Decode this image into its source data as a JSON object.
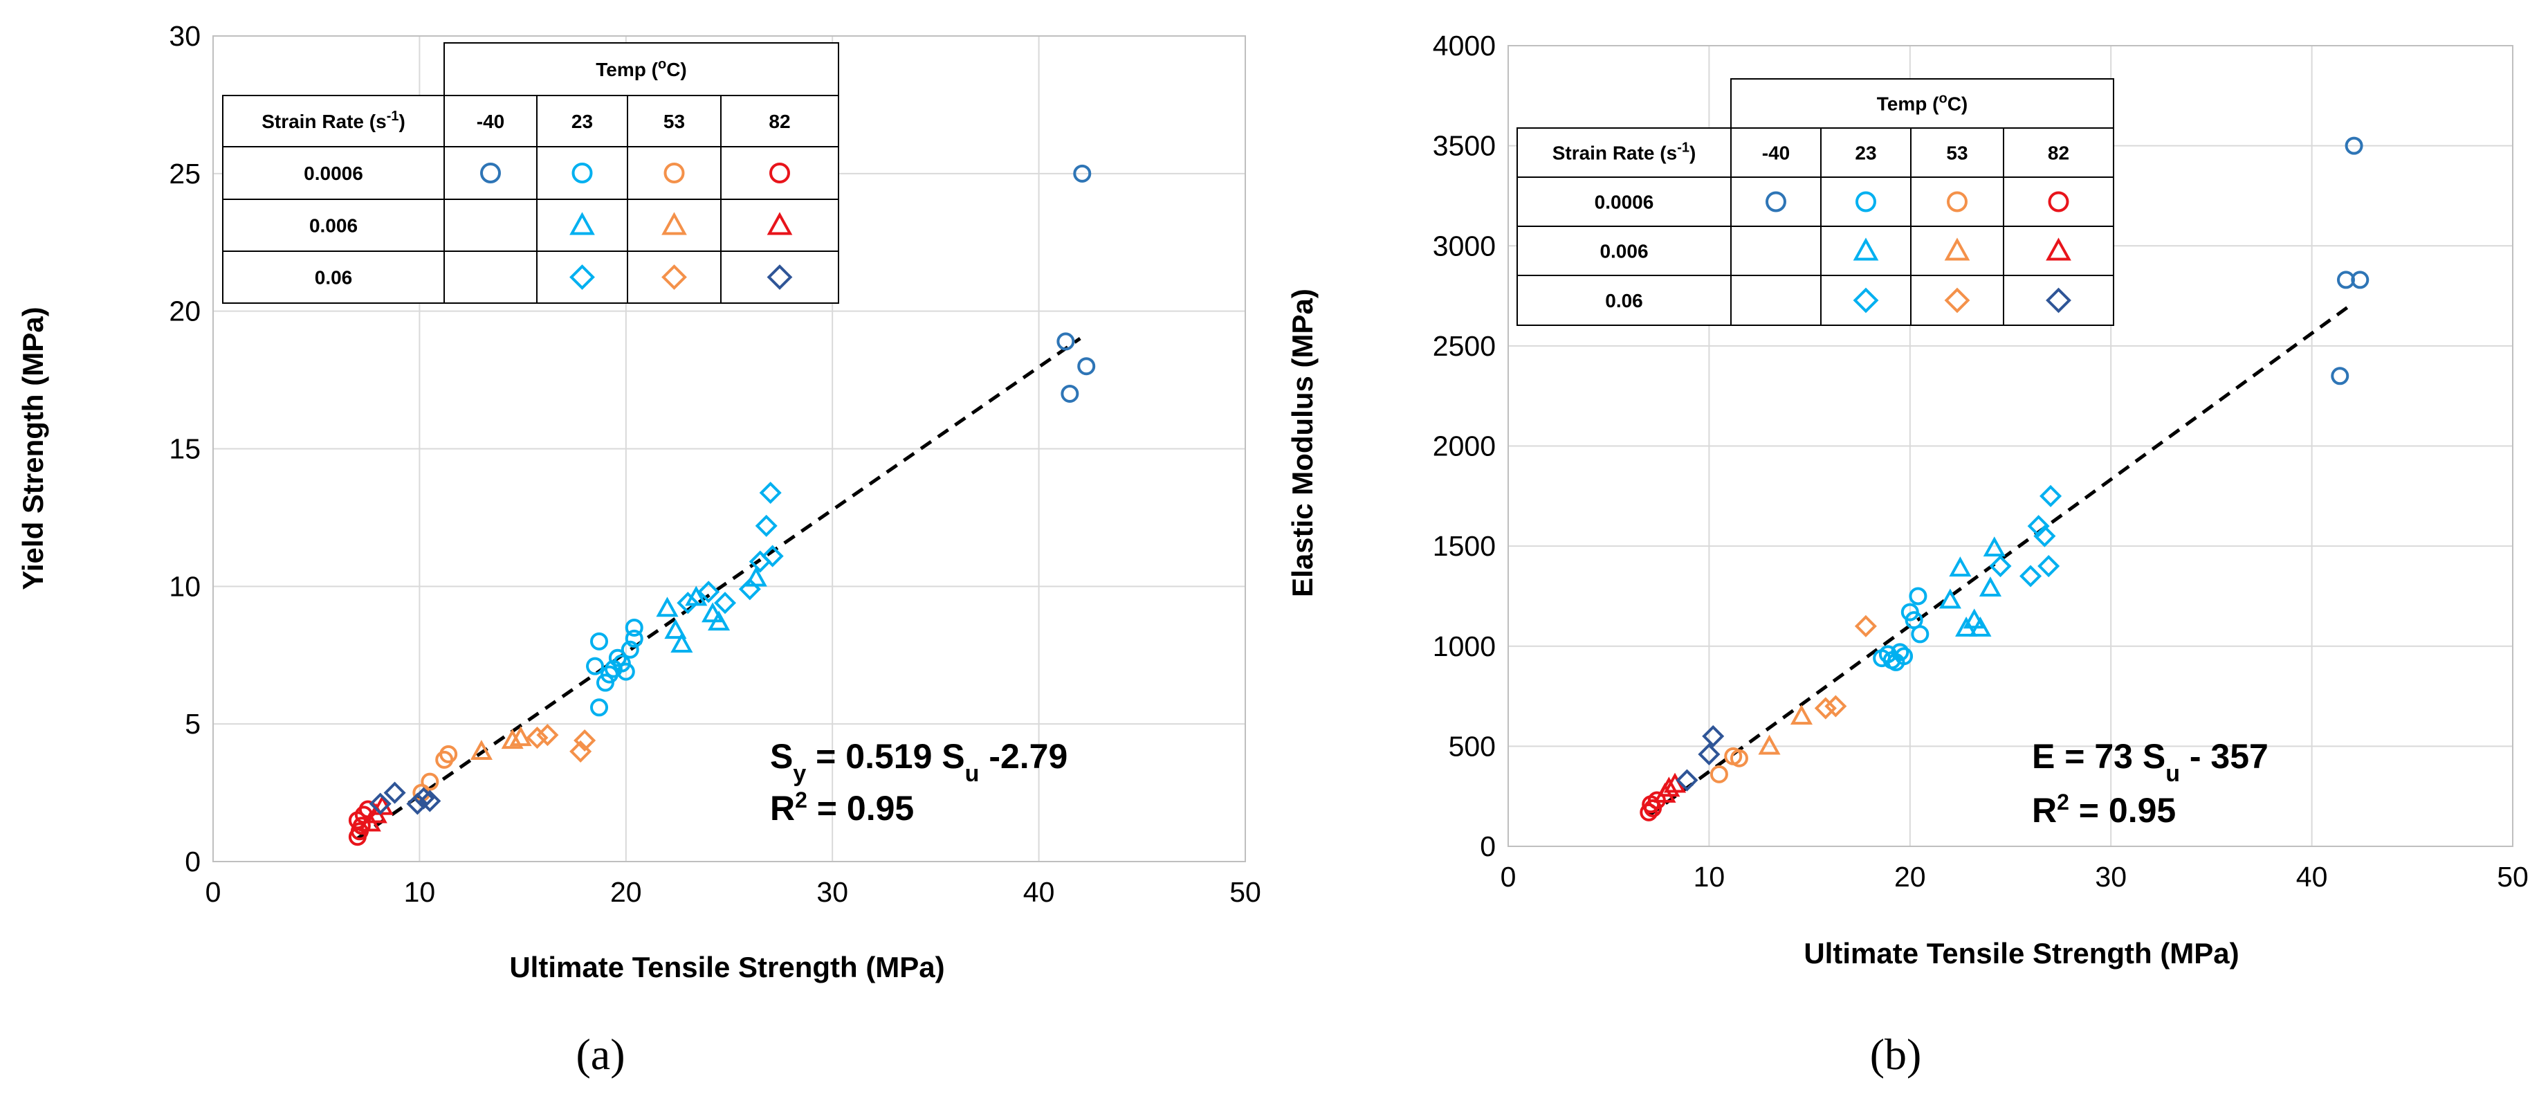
{
  "colors": {
    "m40": "#2E75B6",
    "t23": "#00B0F0",
    "t53": "#F4914A",
    "t82": "#E8141B",
    "t82_diamond": "#2F5597"
  },
  "legend": {
    "temp_label": "Temp (",
    "temp_sup": "o",
    "temp_unit": "C)",
    "rate_label": "Strain Rate (s",
    "rate_sup": "-1",
    "rate_close": ")",
    "temps": [
      "-40",
      "23",
      "53",
      "82"
    ],
    "rates": [
      "0.0006",
      "0.006",
      "0.06"
    ]
  },
  "charts": [
    {
      "panel_label": "(a)",
      "xlabel": "Ultimate Tensile Strength (MPa)",
      "ylabel": "Yield Strength (MPa)",
      "equation": {
        "p1": "S",
        "p1_sub": "y",
        "p2": " = 0.519 S",
        "p2_sub": "u",
        "p3": " -2.79"
      },
      "r2": {
        "p1": "R",
        "sup": "2",
        "p2": " = 0.95"
      }
    },
    {
      "panel_label": "(b)",
      "xlabel": "Ultimate Tensile Strength (MPa)",
      "ylabel": "Elastic Modulus (MPa)",
      "equation": {
        "p1": "E = 73 S",
        "p1_sub": "u",
        "p2": " - 357",
        "p2_sub": "",
        "p3": ""
      },
      "r2": {
        "p1": "R",
        "sup": "2",
        "p2": " = 0.95"
      }
    }
  ],
  "chart_data": [
    {
      "type": "scatter",
      "xlabel": "Ultimate Tensile Strength (MPa)",
      "ylabel": "Yield Strength (MPa)",
      "xlim": [
        0,
        50
      ],
      "ylim": [
        0,
        30
      ],
      "xticks": [
        0,
        10,
        20,
        30,
        40,
        50
      ],
      "yticks": [
        0,
        5,
        10,
        15,
        20,
        25,
        30
      ],
      "grid": true,
      "trendline": {
        "slope": 0.519,
        "intercept": -2.79,
        "x_range": [
          7,
          42
        ],
        "style": "dashed"
      },
      "series": [
        {
          "temp": "-40",
          "rate": "0.0006",
          "marker": "circle",
          "color": "#2E75B6",
          "x": [
            41.3,
            42.1,
            41.5,
            42.3
          ],
          "y": [
            18.9,
            25.0,
            17.0,
            18.0
          ]
        },
        {
          "temp": "23",
          "rate": "0.0006",
          "marker": "circle",
          "color": "#00B0F0",
          "x": [
            18.5,
            18.7,
            19.0,
            19.2,
            19.4,
            19.6,
            19.8,
            20.0,
            20.2,
            20.4,
            20.4,
            18.7
          ],
          "y": [
            7.1,
            8.0,
            6.5,
            6.8,
            7.0,
            7.4,
            7.2,
            6.9,
            7.7,
            8.1,
            8.5,
            5.6
          ]
        },
        {
          "temp": "23",
          "rate": "0.006",
          "marker": "triangle",
          "color": "#00B0F0",
          "x": [
            22.0,
            22.4,
            22.7,
            23.4,
            24.2,
            24.5,
            26.3
          ],
          "y": [
            9.2,
            8.4,
            7.9,
            9.6,
            9.0,
            8.7,
            10.3
          ]
        },
        {
          "temp": "23",
          "rate": "0.06",
          "marker": "diamond",
          "color": "#00B0F0",
          "x": [
            23.0,
            24.0,
            24.8,
            26.0,
            26.5,
            26.8,
            27.0,
            27.1
          ],
          "y": [
            9.4,
            9.8,
            9.4,
            9.9,
            10.9,
            12.2,
            13.4,
            11.1
          ]
        },
        {
          "temp": "53",
          "rate": "0.0006",
          "marker": "circle",
          "color": "#F4914A",
          "x": [
            10.5,
            11.2,
            11.4,
            10.1
          ],
          "y": [
            2.9,
            3.7,
            3.9,
            2.5
          ]
        },
        {
          "temp": "53",
          "rate": "0.006",
          "marker": "triangle",
          "color": "#F4914A",
          "x": [
            13.0,
            14.5,
            14.9
          ],
          "y": [
            4.0,
            4.4,
            4.5
          ]
        },
        {
          "temp": "53",
          "rate": "0.06",
          "marker": "diamond",
          "color": "#F4914A",
          "x": [
            15.7,
            16.2,
            17.8,
            18.0
          ],
          "y": [
            4.5,
            4.6,
            4.0,
            4.4
          ]
        },
        {
          "temp": "82",
          "rate": "0.0006",
          "marker": "circle",
          "color": "#E8141B",
          "x": [
            7.0,
            7.1,
            7.2,
            7.0,
            7.3,
            7.5
          ],
          "y": [
            0.9,
            1.1,
            1.3,
            1.5,
            1.7,
            1.9
          ]
        },
        {
          "temp": "82",
          "rate": "0.006",
          "marker": "triangle",
          "color": "#E8141B",
          "x": [
            7.6,
            7.9,
            8.2
          ],
          "y": [
            1.4,
            1.7,
            2.0
          ]
        },
        {
          "temp": "82",
          "rate": "0.06",
          "marker": "diamond",
          "color": "#E8141B",
          "x": [
            8.1,
            8.8,
            9.9,
            10.2,
            10.5
          ],
          "y": [
            2.1,
            2.5,
            2.1,
            2.3,
            2.2
          ]
        }
      ]
    },
    {
      "type": "scatter",
      "xlabel": "Ultimate Tensile Strength (MPa)",
      "ylabel": "Elastic Modulus (MPa)",
      "xlim": [
        0,
        50
      ],
      "ylim": [
        0,
        4000
      ],
      "xticks": [
        0,
        10,
        20,
        30,
        40,
        50
      ],
      "yticks": [
        0,
        500,
        1000,
        1500,
        2000,
        2500,
        3000,
        3500,
        4000
      ],
      "grid": true,
      "trendline": {
        "slope": 73,
        "intercept": -357,
        "x_range": [
          7,
          42
        ],
        "style": "dashed"
      },
      "series": [
        {
          "temp": "-40",
          "rate": "0.0006",
          "marker": "circle",
          "color": "#2E75B6",
          "x": [
            41.4,
            41.7,
            42.1,
            42.4
          ],
          "y": [
            2350,
            2830,
            3500,
            2830
          ]
        },
        {
          "temp": "23",
          "rate": "0.0006",
          "marker": "circle",
          "color": "#00B0F0",
          "x": [
            18.6,
            18.9,
            19.1,
            19.3,
            19.5,
            19.7,
            20.0,
            20.2,
            20.4,
            20.5
          ],
          "y": [
            940,
            960,
            930,
            920,
            970,
            950,
            1170,
            1130,
            1250,
            1060
          ]
        },
        {
          "temp": "23",
          "rate": "0.006",
          "marker": "triangle",
          "color": "#00B0F0",
          "x": [
            22.0,
            22.5,
            22.8,
            23.2,
            23.5,
            24.0,
            24.2
          ],
          "y": [
            1230,
            1390,
            1090,
            1130,
            1090,
            1290,
            1490
          ]
        },
        {
          "temp": "23",
          "rate": "0.06",
          "marker": "diamond",
          "color": "#00B0F0",
          "x": [
            24.5,
            26.0,
            26.4,
            26.7,
            26.9,
            27.0
          ],
          "y": [
            1400,
            1350,
            1600,
            1550,
            1400,
            1750
          ]
        },
        {
          "temp": "53",
          "rate": "0.0006",
          "marker": "circle",
          "color": "#F4914A",
          "x": [
            10.5,
            11.2,
            11.5
          ],
          "y": [
            360,
            450,
            440
          ]
        },
        {
          "temp": "53",
          "rate": "0.006",
          "marker": "triangle",
          "color": "#F4914A",
          "x": [
            13.0,
            14.6
          ],
          "y": [
            500,
            650
          ]
        },
        {
          "temp": "53",
          "rate": "0.06",
          "marker": "diamond",
          "color": "#F4914A",
          "x": [
            15.8,
            16.3,
            17.8
          ],
          "y": [
            690,
            700,
            1100
          ]
        },
        {
          "temp": "82",
          "rate": "0.0006",
          "marker": "circle",
          "color": "#E8141B",
          "x": [
            7.0,
            7.2,
            7.1,
            7.4
          ],
          "y": [
            170,
            190,
            210,
            230
          ]
        },
        {
          "temp": "82",
          "rate": "0.006",
          "marker": "triangle",
          "color": "#E8141B",
          "x": [
            7.8,
            8.0,
            8.3
          ],
          "y": [
            260,
            290,
            310
          ]
        },
        {
          "temp": "82",
          "rate": "0.06",
          "marker": "diamond",
          "color": "#E8141B",
          "x": [
            8.9,
            10.0,
            10.2
          ],
          "y": [
            330,
            460,
            550
          ]
        }
      ]
    }
  ]
}
